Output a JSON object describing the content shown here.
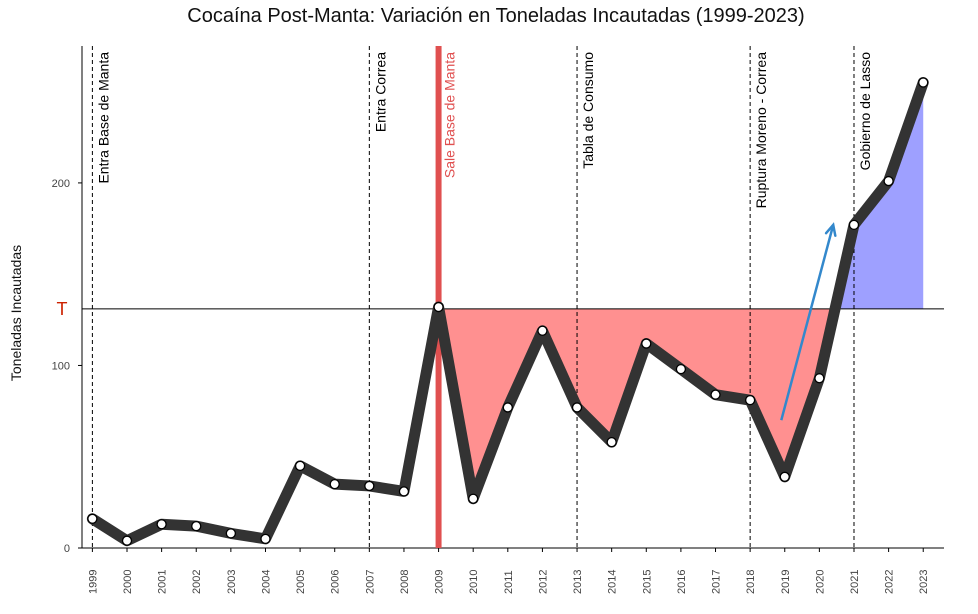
{
  "chart_data": {
    "type": "line",
    "title": "Cocaína Post-Manta: Variación en Toneladas Incautadas (1999-2023)",
    "xlabel": "",
    "ylabel": "Toneladas Incautadas",
    "x": [
      "1999",
      "2000",
      "2001",
      "2002",
      "2003",
      "2004",
      "2005",
      "2006",
      "2007",
      "2008",
      "2009",
      "2010",
      "2011",
      "2012",
      "2013",
      "2014",
      "2015",
      "2016",
      "2017",
      "2018",
      "2019",
      "2020",
      "2021",
      "2022",
      "2023"
    ],
    "values": [
      16,
      4,
      13,
      12,
      8,
      5,
      45,
      35,
      34,
      31,
      132,
      27,
      77,
      119,
      77,
      58,
      112,
      98,
      84,
      81,
      39,
      93,
      177,
      201,
      255
    ],
    "xlim": [
      1998.7,
      2023.6
    ],
    "ylim": [
      0,
      275
    ],
    "yticks": [
      0,
      100,
      200
    ],
    "threshold": {
      "value": 131,
      "label": "T"
    },
    "events": [
      {
        "year": 1999,
        "label": "Entra Base de Manta",
        "style": "dashed",
        "color": "#000000"
      },
      {
        "year": 2007,
        "label": "Entra Correa",
        "style": "dashed",
        "color": "#000000"
      },
      {
        "year": 2009,
        "label": "Sale Base de Manta",
        "style": "thick",
        "color": "#e05050"
      },
      {
        "year": 2013,
        "label": "Tabla de Consumo",
        "style": "dashed",
        "color": "#000000"
      },
      {
        "year": 2018,
        "label": "Ruptura Moreno - Correa",
        "style": "dashed",
        "color": "#000000"
      },
      {
        "year": 2021,
        "label": "Gobierno de Lasso",
        "style": "dashed",
        "color": "#000000"
      }
    ],
    "arrow": {
      "from": [
        2018.9,
        70
      ],
      "to": [
        2020.4,
        177
      ],
      "color": "#3388cc"
    },
    "fill_below_threshold_color": "#ff9090",
    "fill_above_threshold_color": "#9ea0ff",
    "line_color": "#333333",
    "grid": false
  }
}
